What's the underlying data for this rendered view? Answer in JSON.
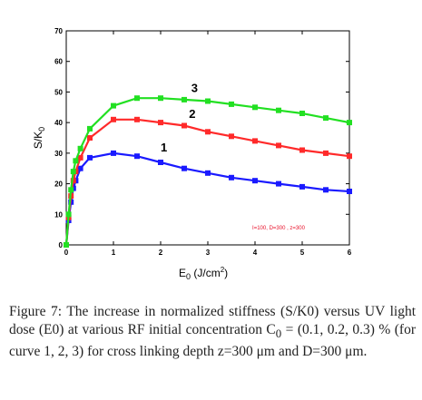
{
  "chart_data": {
    "type": "line",
    "x_values": [
      0,
      0.05,
      0.1,
      0.15,
      0.2,
      0.3,
      0.5,
      1,
      1.5,
      2,
      2.5,
      3,
      3.5,
      4,
      4.5,
      5,
      5.5,
      6
    ],
    "xlim": [
      0,
      6
    ],
    "ylim": [
      0,
      70
    ],
    "x_ticks": [
      "0",
      "1",
      "2",
      "3",
      "4",
      "5",
      "6"
    ],
    "y_ticks": [
      "0",
      "10",
      "20",
      "30",
      "40",
      "50",
      "60",
      "70"
    ],
    "xlabel_main": "E",
    "xlabel_sub": "0",
    "xlabel_units": " (J/cm",
    "xlabel_sup": "2",
    "xlabel_close": ")",
    "ylabel_main": "S/K",
    "ylabel_sub": "0",
    "grid": false,
    "series": [
      {
        "name": "1",
        "color": "#1a1aff",
        "values": [
          0,
          8,
          14,
          18.5,
          21,
          25,
          28.5,
          30,
          29,
          27,
          25,
          23.5,
          22,
          21,
          20,
          19,
          18,
          17.5
        ]
      },
      {
        "name": "2",
        "color": "#ff2a2a",
        "values": [
          0,
          9,
          16,
          21,
          24,
          28.5,
          35,
          41,
          41,
          40,
          39,
          37,
          35.5,
          34,
          32.5,
          31,
          30,
          29
        ]
      },
      {
        "name": "3",
        "color": "#22e022",
        "values": [
          0,
          10,
          18,
          24,
          27.5,
          31.5,
          38,
          45.5,
          48,
          48,
          47.5,
          47,
          46,
          45,
          44,
          43,
          41.5,
          40
        ]
      }
    ],
    "curve_labels": [
      {
        "text": "1",
        "x": 2,
        "y": 30.5
      },
      {
        "text": "2",
        "x": 2.6,
        "y": 41.5
      },
      {
        "text": "3",
        "x": 2.65,
        "y": 50
      }
    ],
    "annotation": {
      "text": "I=100, D=300 , z=300",
      "x": 4.5,
      "y": 5
    }
  },
  "caption": {
    "label": "Figure 7:",
    "text_before_sub": " The increase in normalized stiffness (S/K0) versus UV light dose (E0) at various RF initial concentration C",
    "sub": "0",
    "text_after_sub": " = (0.1, 0.2, 0.3) % (for curve 1, 2, 3) for cross linking depth z=300 μm and D=300 μm."
  }
}
